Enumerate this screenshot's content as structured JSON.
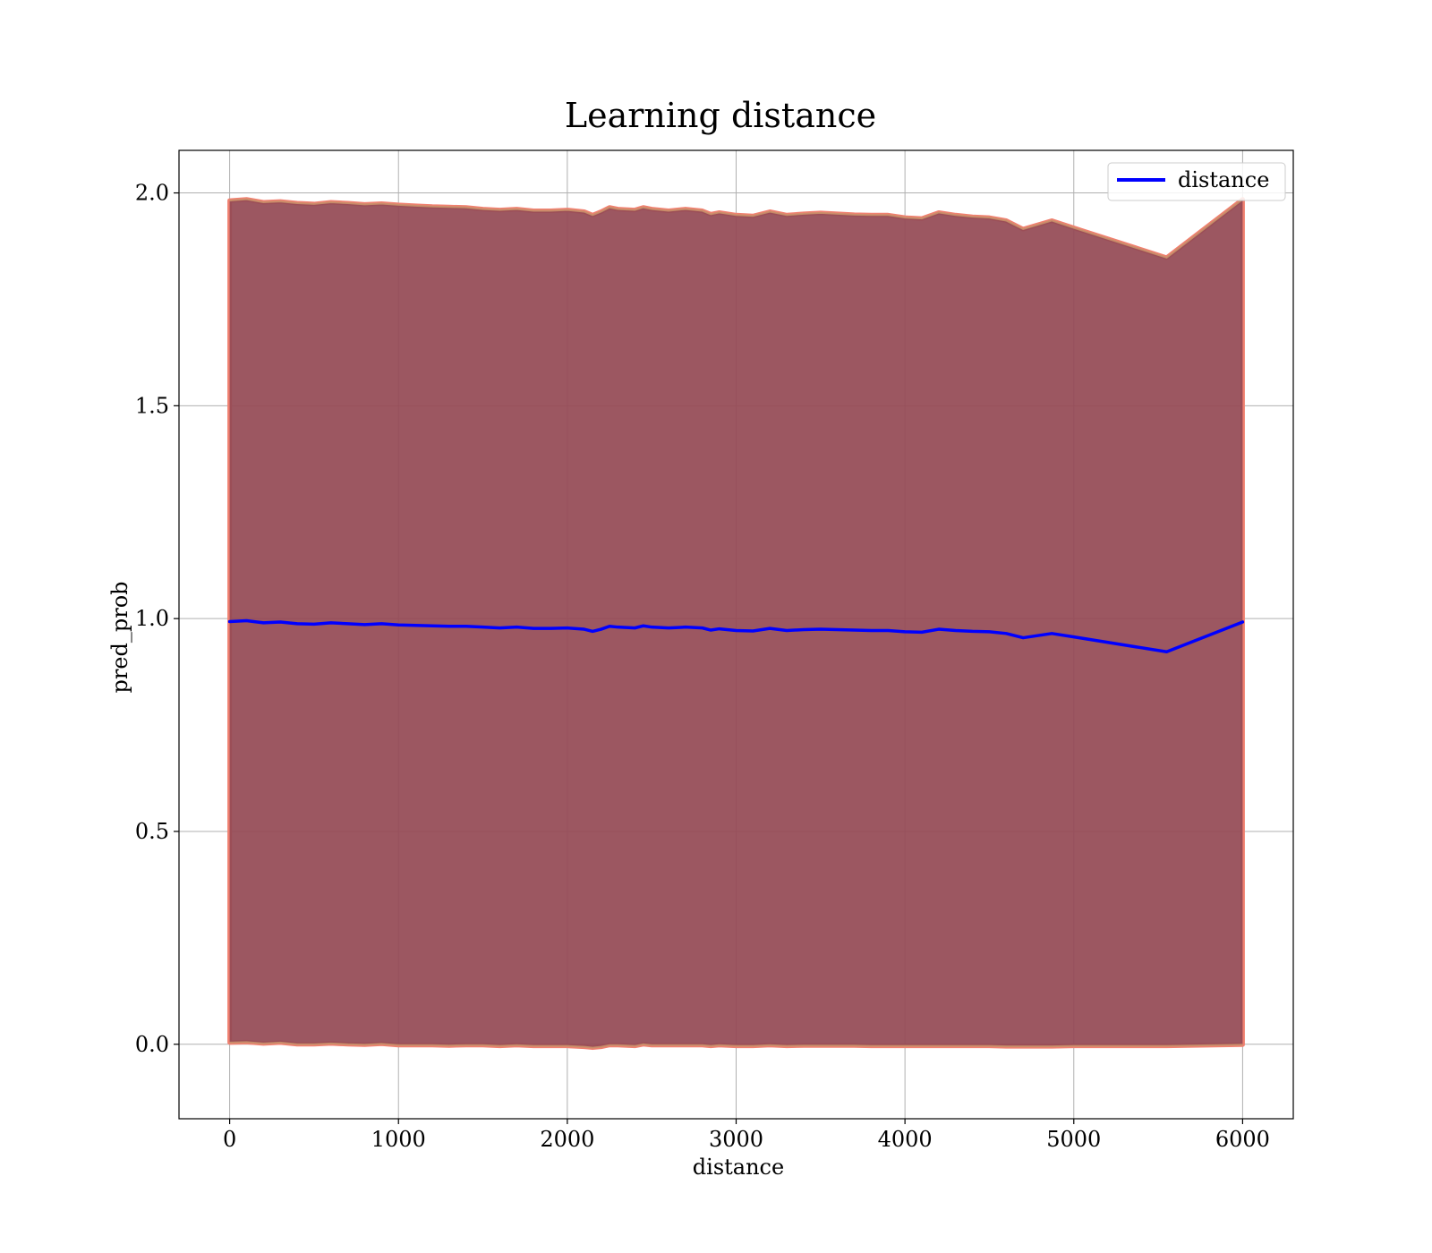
{
  "chart_data": {
    "type": "line",
    "title": "Learning distance",
    "xlabel": "distance",
    "ylabel": "pred_prob",
    "xlim": [
      -300,
      6300
    ],
    "ylim": [
      -0.175,
      2.1
    ],
    "xticks": [
      "0",
      "1000",
      "2000",
      "3000",
      "4000",
      "5000",
      "6000"
    ],
    "yticks": [
      "0.0",
      "0.5",
      "1.0",
      "1.5",
      "2.0"
    ],
    "grid": true,
    "legend": {
      "position": "top-right",
      "entries": [
        "distance"
      ]
    },
    "colors": {
      "line": "#0000ff",
      "band_inner": "#7a3a4e",
      "band_outer": "#f08070",
      "grid": "#b0b0b0"
    },
    "series": [
      {
        "name": "distance",
        "x": [
          0,
          100,
          200,
          300,
          400,
          500,
          600,
          700,
          800,
          900,
          1000,
          1100,
          1200,
          1300,
          1400,
          1500,
          1600,
          1700,
          1800,
          1900,
          2000,
          2100,
          2150,
          2200,
          2250,
          2300,
          2400,
          2450,
          2500,
          2600,
          2700,
          2800,
          2850,
          2900,
          3000,
          3100,
          3200,
          3300,
          3400,
          3500,
          3600,
          3700,
          3800,
          3900,
          4000,
          4100,
          4200,
          4300,
          4400,
          4500,
          4600,
          4700,
          4870,
          5000,
          5550,
          6000
        ],
        "y": [
          0.993,
          0.995,
          0.99,
          0.992,
          0.988,
          0.987,
          0.99,
          0.988,
          0.986,
          0.988,
          0.985,
          0.984,
          0.983,
          0.982,
          0.982,
          0.98,
          0.978,
          0.98,
          0.977,
          0.977,
          0.978,
          0.975,
          0.97,
          0.975,
          0.982,
          0.98,
          0.978,
          0.983,
          0.98,
          0.978,
          0.98,
          0.978,
          0.973,
          0.976,
          0.972,
          0.971,
          0.977,
          0.972,
          0.974,
          0.975,
          0.974,
          0.973,
          0.972,
          0.972,
          0.969,
          0.968,
          0.975,
          0.972,
          0.97,
          0.969,
          0.965,
          0.955,
          0.965,
          0.957,
          0.922,
          0.992
        ],
        "band_upper": [
          1.982,
          1.985,
          1.978,
          1.98,
          1.976,
          1.974,
          1.978,
          1.976,
          1.973,
          1.975,
          1.972,
          1.97,
          1.968,
          1.967,
          1.966,
          1.962,
          1.96,
          1.962,
          1.958,
          1.958,
          1.96,
          1.956,
          1.948,
          1.956,
          1.966,
          1.962,
          1.96,
          1.966,
          1.962,
          1.958,
          1.962,
          1.958,
          1.95,
          1.954,
          1.948,
          1.946,
          1.956,
          1.948,
          1.951,
          1.953,
          1.951,
          1.949,
          1.948,
          1.948,
          1.942,
          1.94,
          1.954,
          1.948,
          1.944,
          1.942,
          1.935,
          1.915,
          1.935,
          1.918,
          1.848,
          1.985
        ],
        "band_lower": [
          0.004,
          0.005,
          0.002,
          0.004,
          0.0,
          0.0,
          0.002,
          0.0,
          -0.001,
          0.001,
          -0.002,
          -0.002,
          -0.002,
          -0.003,
          -0.002,
          -0.002,
          -0.004,
          -0.002,
          -0.004,
          -0.004,
          -0.004,
          -0.006,
          -0.008,
          -0.006,
          -0.002,
          -0.002,
          -0.004,
          0.0,
          -0.002,
          -0.002,
          -0.002,
          -0.002,
          -0.004,
          -0.002,
          -0.004,
          -0.004,
          -0.002,
          -0.004,
          -0.003,
          -0.003,
          -0.003,
          -0.003,
          -0.004,
          -0.004,
          -0.004,
          -0.004,
          -0.004,
          -0.004,
          -0.004,
          -0.004,
          -0.005,
          -0.005,
          -0.005,
          -0.004,
          -0.004,
          -0.001
        ]
      }
    ]
  }
}
